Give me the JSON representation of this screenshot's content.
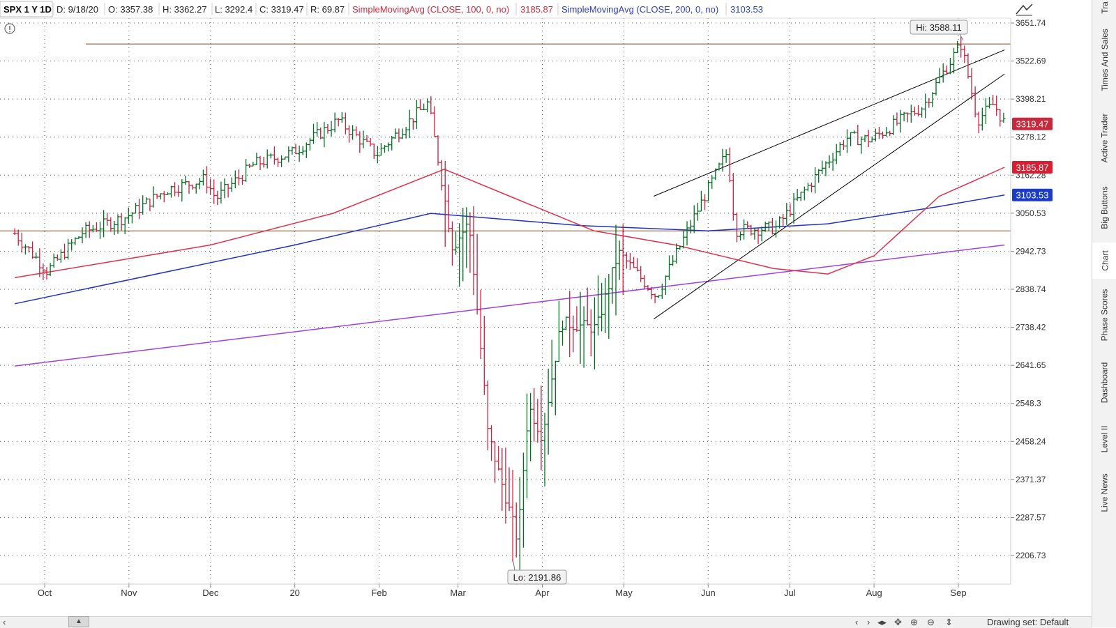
{
  "header": {
    "symbol_label": "SPX 1 Y 1D",
    "date": "D: 9/18/20",
    "open": "O: 3357.38",
    "high": "H: 3362.27",
    "low": "L: 3292.4",
    "close": "C: 3319.47",
    "range": "R: 69.87",
    "sma100_label": "SimpleMovingAvg (CLOSE, 100, 0, no)",
    "sma100_value": "3185.87",
    "sma200_label": "SimpleMovingAvg (CLOSE, 200, 0, no)",
    "sma200_value": "3103.53"
  },
  "price_axis": {
    "ticks": [
      "3651.74",
      "3522.69",
      "3398.21",
      "3278.12",
      "3162.28",
      "3050.53",
      "2942.73",
      "2838.74",
      "2738.42",
      "2641.65",
      "2548.3",
      "2458.24",
      "2371.37",
      "2287.57",
      "2206.73"
    ]
  },
  "time_axis": {
    "ticks": [
      "Oct",
      "Nov",
      "Dec",
      "20",
      "Feb",
      "Mar",
      "Apr",
      "May",
      "Jun",
      "Jul",
      "Aug",
      "Sep"
    ]
  },
  "annotations": {
    "high_label": "Hi: 3588.11",
    "low_label": "Lo: 2191.86"
  },
  "price_markers": {
    "last": "3319.47",
    "sma100": "3185.87",
    "sma200": "3103.53"
  },
  "colors": {
    "up_bar": "#006e1f",
    "down_bar": "#c81e3c",
    "sma100_line": "#e0304a",
    "sma200_line": "#2030c8",
    "trend_line": "#a040e0",
    "horizontal_line": "#7a4a20",
    "channel_line": "#000000",
    "last_marker_bg": "#c8283c",
    "sma100_marker_bg": "#d81e30",
    "sma200_marker_bg": "#1a3cc8"
  },
  "sidebar": {
    "tabs": [
      "Tra",
      "Times And Sales",
      "Active Trader",
      "Big Buttons",
      "Chart",
      "Phase Scores",
      "Dashboard",
      "Level II",
      "Live News"
    ],
    "active": "Chart"
  },
  "toolbar": {
    "drawing_set": "Drawing set: Default"
  },
  "chart_data": {
    "type": "ohlc",
    "symbol": "SPX",
    "timeframe": "1 Y 1D",
    "y_axis_scale": "log",
    "ylim": [
      2180,
      3700
    ],
    "grid": true,
    "last_bar": {
      "date": "9/18/20",
      "open": 3357.38,
      "high": 3362.27,
      "low": 3292.4,
      "close": 3319.47
    },
    "high": {
      "value": 3588.11,
      "label": "Hi: 3588.11"
    },
    "low": {
      "value": 2191.86,
      "label": "Lo: 2191.86"
    },
    "months": [
      "Oct",
      "Nov",
      "Dec",
      "20",
      "Feb",
      "Mar",
      "Apr",
      "May",
      "Jun",
      "Jul",
      "Aug",
      "Sep"
    ],
    "series": [
      {
        "name": "SimpleMovingAvg (CLOSE, 100, 0, no)",
        "current": 3185.87
      },
      {
        "name": "SimpleMovingAvg (CLOSE, 200, 0, no)",
        "current": 3103.53
      }
    ],
    "price_path": [
      [
        "2019-09-20",
        2992
      ],
      [
        "2019-10-02",
        2888
      ],
      [
        "2019-10-15",
        2996
      ],
      [
        "2019-10-31",
        3040
      ],
      [
        "2019-11-15",
        3120
      ],
      [
        "2019-11-29",
        3150
      ],
      [
        "2019-12-03",
        3093
      ],
      [
        "2019-12-17",
        3195
      ],
      [
        "2019-12-31",
        3230
      ],
      [
        "2020-01-17",
        3330
      ],
      [
        "2020-01-31",
        3225
      ],
      [
        "2020-02-19",
        3386
      ],
      [
        "2020-02-28",
        2954
      ],
      [
        "2020-03-05",
        3023
      ],
      [
        "2020-03-12",
        2480
      ],
      [
        "2020-03-16",
        2386
      ],
      [
        "2020-03-23",
        2237
      ],
      [
        "2020-03-27",
        2541
      ],
      [
        "2020-04-01",
        2470
      ],
      [
        "2020-04-08",
        2750
      ],
      [
        "2020-04-21",
        2736
      ],
      [
        "2020-04-29",
        2939
      ],
      [
        "2020-05-13",
        2820
      ],
      [
        "2020-06-08",
        3232
      ],
      [
        "2020-06-11",
        3002
      ],
      [
        "2020-06-26",
        3009
      ],
      [
        "2020-07-22",
        3276
      ],
      [
        "2020-07-31",
        3271
      ],
      [
        "2020-08-19",
        3375
      ],
      [
        "2020-09-02",
        3580
      ],
      [
        "2020-09-08",
        3331
      ],
      [
        "2020-09-14",
        3383
      ],
      [
        "2020-09-18",
        3319
      ]
    ],
    "sma100_path": [
      [
        "2019-09-20",
        2870
      ],
      [
        "2019-12-01",
        2960
      ],
      [
        "2020-01-15",
        3050
      ],
      [
        "2020-02-25",
        3180
      ],
      [
        "2020-03-20",
        3100
      ],
      [
        "2020-04-20",
        3000
      ],
      [
        "2020-05-20",
        2960
      ],
      [
        "2020-06-25",
        2895
      ],
      [
        "2020-07-15",
        2880
      ],
      [
        "2020-08-01",
        2930
      ],
      [
        "2020-08-25",
        3100
      ],
      [
        "2020-09-18",
        3185.87
      ]
    ],
    "sma200_path": [
      [
        "2019-09-20",
        2800
      ],
      [
        "2020-01-01",
        2960
      ],
      [
        "2020-02-20",
        3050
      ],
      [
        "2020-04-15",
        3015
      ],
      [
        "2020-06-01",
        3000
      ],
      [
        "2020-07-15",
        3020
      ],
      [
        "2020-08-25",
        3070
      ],
      [
        "2020-09-18",
        3103.53
      ]
    ],
    "horizontal_lines": [
      3580,
      3000
    ],
    "trend_line": [
      [
        "2019-09-20",
        2640
      ],
      [
        "2020-09-18",
        2960
      ]
    ],
    "channel_upper": [
      [
        "2020-05-12",
        3100
      ],
      [
        "2020-09-18",
        3560
      ]
    ],
    "channel_lower": [
      [
        "2020-05-12",
        2760
      ],
      [
        "2020-09-18",
        3480
      ]
    ]
  }
}
